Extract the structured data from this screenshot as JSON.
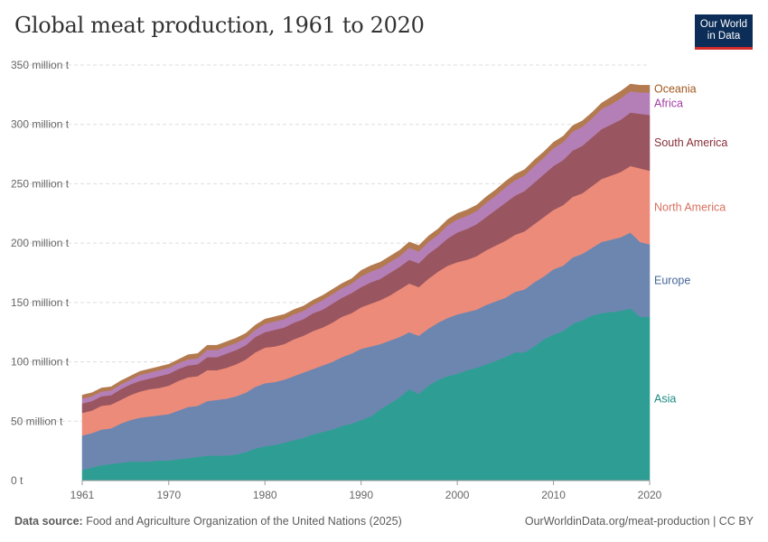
{
  "page": {
    "title": "Global meat production, 1961 to 2020",
    "logo_line1": "Our World",
    "logo_line2": "in Data",
    "source_label": "Data source:",
    "source_text": "Food and Agriculture Organization of the United Nations (2025)",
    "url_text": "OurWorldinData.org/meat-production | CC BY"
  },
  "chart_data": {
    "type": "area",
    "stacked": true,
    "x": [
      1961,
      1962,
      1963,
      1964,
      1965,
      1966,
      1967,
      1968,
      1969,
      1970,
      1971,
      1972,
      1973,
      1974,
      1975,
      1976,
      1977,
      1978,
      1979,
      1980,
      1981,
      1982,
      1983,
      1984,
      1985,
      1986,
      1987,
      1988,
      1989,
      1990,
      1991,
      1992,
      1993,
      1994,
      1995,
      1996,
      1997,
      1998,
      1999,
      2000,
      2001,
      2002,
      2003,
      2004,
      2005,
      2006,
      2007,
      2008,
      2009,
      2010,
      2011,
      2012,
      2013,
      2014,
      2015,
      2016,
      2017,
      2018,
      2019,
      2020
    ],
    "xlim": [
      1961,
      2020
    ],
    "ylim": [
      0,
      350
    ],
    "y_ticks": [
      {
        "value": 0,
        "label": "0 t"
      },
      {
        "value": 50,
        "label": "50 million t"
      },
      {
        "value": 100,
        "label": "100 million t"
      },
      {
        "value": 150,
        "label": "150 million t"
      },
      {
        "value": 200,
        "label": "200 million t"
      },
      {
        "value": 250,
        "label": "250 million t"
      },
      {
        "value": 300,
        "label": "300 million t"
      },
      {
        "value": 350,
        "label": "350 million t"
      }
    ],
    "x_ticks": [
      {
        "value": 1961,
        "label": "1961"
      },
      {
        "value": 1970,
        "label": "1970"
      },
      {
        "value": 1980,
        "label": "1980"
      },
      {
        "value": 1990,
        "label": "1990"
      },
      {
        "value": 2000,
        "label": "2000"
      },
      {
        "value": 2010,
        "label": "2010"
      },
      {
        "value": 2020,
        "label": "2020"
      }
    ],
    "grid": true,
    "legend": "right-end labels",
    "series": [
      {
        "name": "Asia",
        "color": "#2e9e94",
        "label_color": "#1a8a80",
        "values": [
          9,
          11,
          13,
          14,
          15,
          16,
          16,
          16,
          17,
          17,
          18,
          19,
          20,
          21,
          21,
          21,
          22,
          24,
          27,
          29,
          30,
          32,
          34,
          36,
          39,
          41,
          43,
          46,
          48,
          51,
          54,
          60,
          65,
          70,
          77,
          73,
          80,
          85,
          88,
          90,
          93,
          95,
          98,
          101,
          104,
          108,
          108,
          113,
          119,
          123,
          126,
          132,
          135,
          139,
          141,
          142,
          143,
          145,
          138,
          138
        ]
      },
      {
        "name": "Europe",
        "color": "#6c86b0",
        "label_color": "#46659b",
        "values": [
          29,
          29,
          30,
          30,
          33,
          35,
          37,
          38,
          38,
          39,
          41,
          43,
          43,
          46,
          47,
          48,
          49,
          50,
          52,
          53,
          53,
          53,
          54,
          55,
          55,
          56,
          57,
          58,
          59,
          60,
          59,
          55,
          53,
          51,
          48,
          49,
          48,
          48,
          49,
          50,
          49,
          49,
          50,
          50,
          50,
          51,
          53,
          54,
          53,
          55,
          55,
          56,
          56,
          57,
          60,
          61,
          62,
          64,
          63,
          61
        ]
      },
      {
        "name": "North America",
        "color": "#ec8b79",
        "label_color": "#d9705f",
        "values": [
          19,
          19,
          20,
          20,
          20,
          21,
          22,
          23,
          23,
          24,
          25,
          25,
          25,
          26,
          25,
          26,
          27,
          28,
          29,
          30,
          30,
          30,
          31,
          31,
          32,
          32,
          33,
          34,
          34,
          35,
          36,
          37,
          38,
          40,
          41,
          41,
          42,
          43,
          44,
          44,
          44,
          45,
          46,
          47,
          48,
          48,
          49,
          49,
          50,
          50,
          51,
          51,
          51,
          52,
          53,
          54,
          55,
          56,
          62,
          62
        ]
      },
      {
        "name": "South America",
        "color": "#9a5660",
        "label_color": "#883039",
        "values": [
          8,
          8,
          8,
          8,
          9,
          9,
          9,
          9,
          10,
          10,
          10,
          10,
          10,
          11,
          11,
          12,
          12,
          12,
          13,
          13,
          14,
          14,
          14,
          14,
          15,
          15,
          16,
          16,
          17,
          17,
          18,
          18,
          19,
          19,
          20,
          20,
          21,
          21,
          23,
          25,
          26,
          27,
          28,
          30,
          32,
          33,
          34,
          35,
          36,
          37,
          38,
          39,
          40,
          41,
          42,
          43,
          44,
          45,
          46,
          47
        ]
      },
      {
        "name": "Africa",
        "color": "#b47fb6",
        "label_color": "#a13da5",
        "values": [
          4,
          4,
          4,
          4,
          4,
          4,
          5,
          5,
          5,
          5,
          5,
          5,
          5,
          6,
          6,
          6,
          6,
          6,
          6,
          7,
          7,
          7,
          7,
          7,
          7,
          8,
          8,
          8,
          8,
          9,
          9,
          9,
          9,
          9,
          10,
          10,
          10,
          10,
          11,
          11,
          11,
          11,
          12,
          12,
          13,
          13,
          13,
          14,
          14,
          15,
          15,
          16,
          16,
          16,
          17,
          17,
          18,
          18,
          18,
          19
        ]
      },
      {
        "name": "Oceania",
        "color": "#b37a50",
        "label_color": "#a2581e",
        "values": [
          3,
          3,
          3,
          3,
          3,
          3,
          3,
          3,
          3,
          3,
          3,
          4,
          4,
          4,
          4,
          4,
          4,
          4,
          4,
          4,
          4,
          4,
          4,
          4,
          4,
          4,
          4,
          4,
          4,
          5,
          5,
          5,
          5,
          5,
          5,
          5,
          5,
          5,
          5,
          5,
          5,
          5,
          5,
          5,
          5,
          5,
          5,
          5,
          5,
          5,
          5,
          5,
          5,
          5,
          5,
          6,
          6,
          6,
          6,
          6
        ]
      }
    ]
  }
}
